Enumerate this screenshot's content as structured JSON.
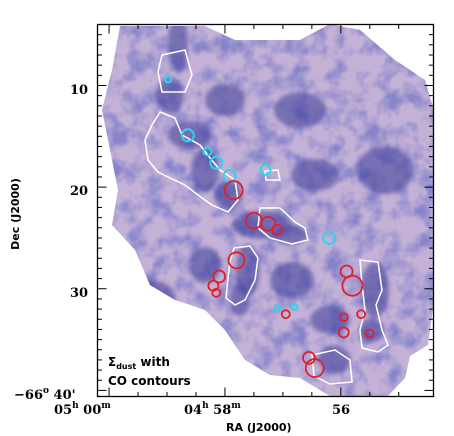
{
  "chart_data": {
    "type": "heatmap",
    "xlabel": "RA (J2000)",
    "ylabel": "Dec (J2000)",
    "annotation_line1": "Σ",
    "annotation_sub": "dust",
    "annotation_line1_rest": " with",
    "annotation_line2": "CO contours",
    "x_ticks": [
      {
        "label": "05",
        "sup1": "h",
        "mid": " 00",
        "sup2": "m",
        "ra_min": 60
      },
      {
        "label": "04",
        "sup1": "h",
        "mid": " 58",
        "sup2": "m",
        "ra_min": 58
      },
      {
        "label": "56",
        "sup1": "",
        "mid": "",
        "sup2": "",
        "ra_min": 56
      }
    ],
    "y_ticks": [
      {
        "label": "10",
        "dec_arcmin": 10
      },
      {
        "label": "20",
        "dec_arcmin": 20
      },
      {
        "label": "30",
        "dec_arcmin": 30
      },
      {
        "label": "−66",
        "sup": "o",
        "rest": " 40'",
        "dec_arcmin": 40
      }
    ],
    "x_range_ra_min": [
      60.2,
      54.4
    ],
    "y_range_dec_arcmin": [
      4.0,
      40.6
    ],
    "colors": {
      "map_light": "#c9b6d9",
      "map_mid": "#9a93c8",
      "map_dark": "#3c3a97",
      "contour": "#ffffff",
      "circle_cyan": "#2fd3ee",
      "circle_red": "#e0202a",
      "hotspot": "#e8a020"
    },
    "cyan_circles": [
      {
        "ra": 58.98,
        "dec": 9.4
      },
      {
        "ra": 58.64,
        "dec": 14.9
      },
      {
        "ra": 58.3,
        "dec": 16.5
      },
      {
        "ra": 58.15,
        "dec": 17.6
      },
      {
        "ra": 57.92,
        "dec": 18.9
      },
      {
        "ra": 57.3,
        "dec": 18.3
      },
      {
        "ra": 56.2,
        "dec": 25.0
      },
      {
        "ra": 56.8,
        "dec": 31.8
      },
      {
        "ra": 57.1,
        "dec": 31.9
      }
    ],
    "red_circles": [
      {
        "ra": 57.85,
        "dec": 20.3
      },
      {
        "ra": 57.5,
        "dec": 23.3
      },
      {
        "ra": 57.25,
        "dec": 23.6
      },
      {
        "ra": 57.1,
        "dec": 24.2
      },
      {
        "ra": 57.8,
        "dec": 27.2
      },
      {
        "ra": 58.1,
        "dec": 28.8
      },
      {
        "ra": 58.2,
        "dec": 29.7
      },
      {
        "ra": 58.15,
        "dec": 30.4
      },
      {
        "ra": 56.95,
        "dec": 32.5
      },
      {
        "ra": 56.55,
        "dec": 36.8
      },
      {
        "ra": 56.45,
        "dec": 37.8
      },
      {
        "ra": 55.9,
        "dec": 28.3
      },
      {
        "ra": 55.8,
        "dec": 29.7
      },
      {
        "ra": 55.95,
        "dec": 32.8
      },
      {
        "ra": 55.65,
        "dec": 32.5
      },
      {
        "ra": 55.95,
        "dec": 34.3
      },
      {
        "ra": 55.5,
        "dec": 34.4
      }
    ]
  }
}
